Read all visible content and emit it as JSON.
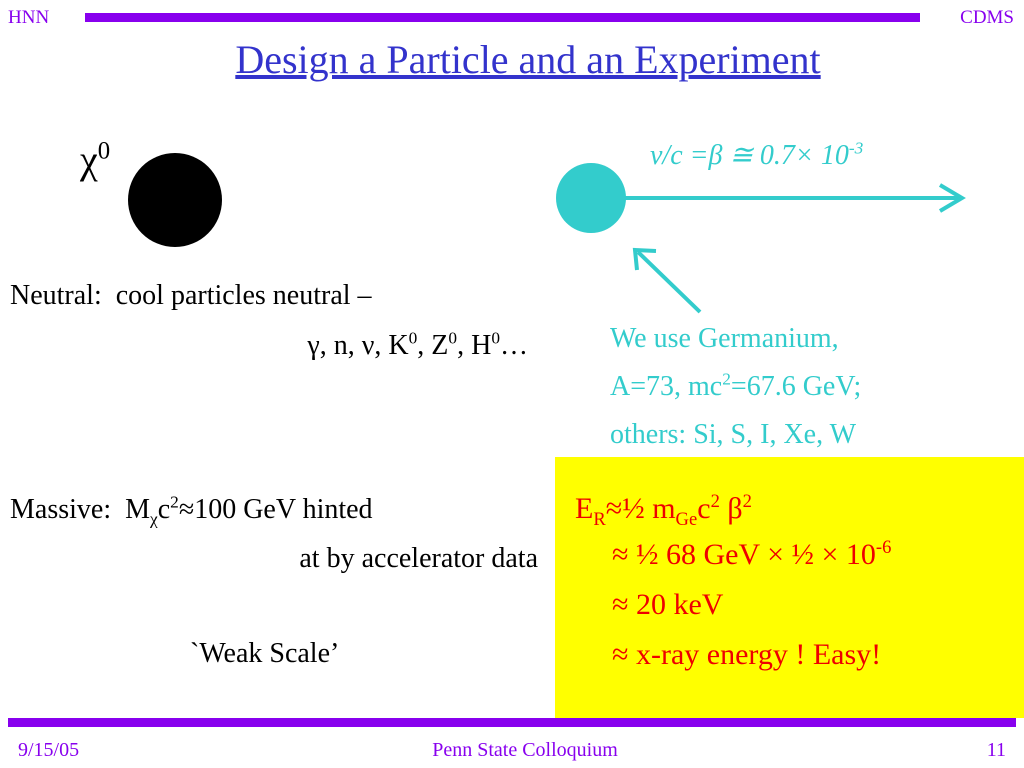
{
  "header": {
    "left": "HNN",
    "right": "CDMS",
    "title": "Design a Particle and an Experiment"
  },
  "particle": [
    "χ",
    "0"
  ],
  "velocity": [
    "v/c =β ≅ 0.7× 10",
    "-3"
  ],
  "neutral": {
    "line1": [
      "Neutral:  cool particles neutral –"
    ],
    "line2": [
      "γ, n, ν, K",
      "0",
      ", Z",
      "0",
      ", H",
      "0",
      "…"
    ]
  },
  "germanium": {
    "line1": [
      "We use Germanium,"
    ],
    "line2": [
      "A=73, mc",
      "2",
      "=67.6 GeV;"
    ],
    "line3": [
      "others: Si, S, I, Xe, W"
    ]
  },
  "massive": {
    "line1": [
      "Massive:  M",
      "χ",
      "c",
      "2",
      "≈100 GeV hinted"
    ],
    "line2": [
      "at by accelerator data"
    ],
    "line3": [
      "`Weak Scale’"
    ]
  },
  "energy": {
    "line1": [
      "E",
      "R",
      "≈½ m",
      "Ge",
      "c",
      "2",
      " β",
      "2"
    ],
    "line2": [
      "≈ ½ 68 GeV × ½ × 10",
      "-6"
    ],
    "line3": [
      "≈ 20 keV"
    ],
    "line4": [
      "≈ x-ray energy ! Easy!"
    ]
  },
  "footer": {
    "date": "9/15/05",
    "event": "Penn State Colloquium",
    "page": "11"
  }
}
